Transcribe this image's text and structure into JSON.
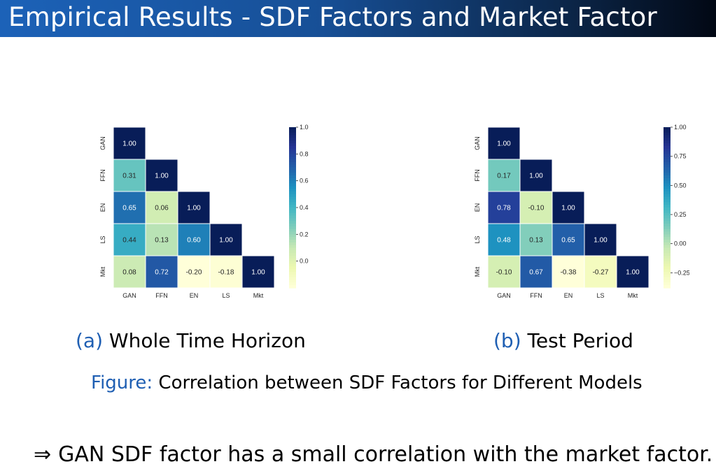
{
  "title": "Empirical Results - SDF Factors and Market Factor",
  "figure_label": "Figure:",
  "figure_caption": "Correlation between SDF Factors for Different Models",
  "conclusion": {
    "arrow": "⇒",
    "text": "GAN SDF factor has a small correlation with the market factor."
  },
  "subfigures": [
    {
      "label": "(a)",
      "caption": "Whole Time Horizon"
    },
    {
      "label": "(b)",
      "caption": "Test Period"
    }
  ],
  "colors": {
    "title_bar_start": "#1c62b8",
    "title_bar_end": "#020814",
    "caption_accent": "#1f5fb3",
    "colormap": "YlGnBu"
  },
  "chart_data": [
    {
      "type": "heatmap",
      "variables": [
        "GAN",
        "FFN",
        "EN",
        "LS",
        "Mkt"
      ],
      "matrix": [
        [
          1.0
        ],
        [
          0.31,
          1.0
        ],
        [
          0.65,
          0.06,
          1.0
        ],
        [
          0.44,
          0.13,
          0.6,
          1.0
        ],
        [
          0.08,
          0.72,
          -0.2,
          -0.18,
          1.0
        ]
      ],
      "labels": [
        [
          "1.00"
        ],
        [
          "0.31",
          "1.00"
        ],
        [
          "0.65",
          "0.06",
          "1.00"
        ],
        [
          "0.44",
          "0.13",
          "0.60",
          "1.00"
        ],
        [
          "0.08",
          "0.72",
          "-0.20",
          "-0.18",
          "1.00"
        ]
      ],
      "colorbar": {
        "range": [
          -0.2,
          1.0
        ],
        "ticks": [
          0.0,
          0.2,
          0.4,
          0.6,
          0.8,
          1.0
        ],
        "tick_labels": [
          "0.0",
          "0.2",
          "0.4",
          "0.6",
          "0.8",
          "1.0"
        ]
      },
      "mask": "upper-triangle"
    },
    {
      "type": "heatmap",
      "variables": [
        "GAN",
        "FFN",
        "EN",
        "LS",
        "Mkt"
      ],
      "matrix": [
        [
          1.0
        ],
        [
          0.17,
          1.0
        ],
        [
          0.78,
          -0.1,
          1.0
        ],
        [
          0.48,
          0.13,
          0.65,
          1.0
        ],
        [
          -0.1,
          0.67,
          -0.38,
          -0.27,
          1.0
        ]
      ],
      "labels": [
        [
          "1.00"
        ],
        [
          "0.17",
          "1.00"
        ],
        [
          "0.78",
          "-0.10",
          "1.00"
        ],
        [
          "0.48",
          "0.13",
          "0.65",
          "1.00"
        ],
        [
          "-0.10",
          "0.67",
          "-0.38",
          "-0.27",
          "1.00"
        ]
      ],
      "colorbar": {
        "range": [
          -0.38,
          1.0
        ],
        "ticks": [
          -0.25,
          0.0,
          0.25,
          0.5,
          0.75,
          1.0
        ],
        "tick_labels": [
          "−0.25",
          "0.00",
          "0.25",
          "0.50",
          "0.75",
          "1.00"
        ]
      },
      "mask": "upper-triangle"
    }
  ]
}
